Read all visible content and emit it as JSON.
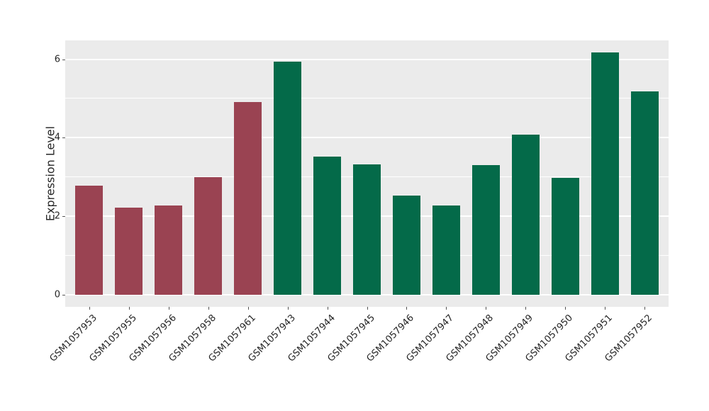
{
  "chart_data": {
    "type": "bar",
    "title": "",
    "xlabel": "",
    "ylabel": "Expression Level",
    "categories": [
      "GSM1057953",
      "GSM1057955",
      "GSM1057956",
      "GSM1057958",
      "GSM1057961",
      "GSM1057943",
      "GSM1057944",
      "GSM1057945",
      "GSM1057946",
      "GSM1057947",
      "GSM1057948",
      "GSM1057949",
      "GSM1057950",
      "GSM1057951",
      "GSM1057952"
    ],
    "values": [
      2.77,
      2.22,
      2.28,
      2.99,
      4.91,
      5.94,
      3.52,
      3.32,
      2.52,
      2.27,
      3.3,
      4.08,
      2.98,
      6.17,
      5.18
    ],
    "bar_colors": [
      "#9a4352",
      "#9a4352",
      "#9a4352",
      "#9a4352",
      "#9a4352",
      "#046a49",
      "#046a49",
      "#046a49",
      "#046a49",
      "#046a49",
      "#046a49",
      "#046a49",
      "#046a49",
      "#046a49",
      "#046a49"
    ],
    "group_colors": {
      "red": "#9a4352",
      "green": "#046a49"
    },
    "yticks": [
      0,
      2,
      4,
      6
    ],
    "minor_gridlines": [
      1,
      3,
      5
    ],
    "ylim": [
      -0.31,
      6.48
    ],
    "grid": true,
    "legend_position": "none",
    "plot_background": "#ebebeb",
    "gridline_color": "#ffffff",
    "tick_color": "#555555",
    "text_color": "#262626"
  }
}
